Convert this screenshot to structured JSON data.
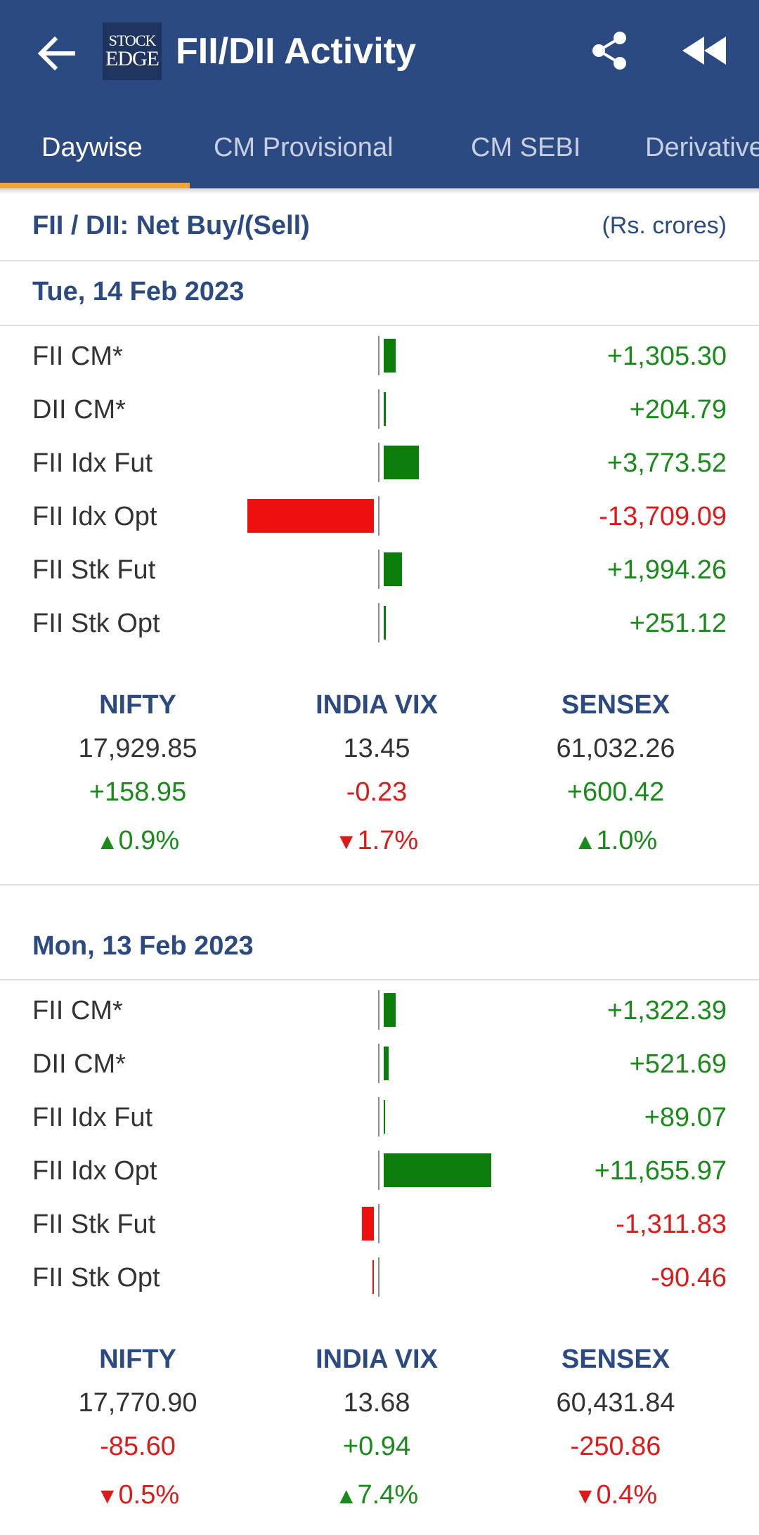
{
  "app": {
    "title": "FII/DII Activity",
    "logo_line1": "STOCK",
    "logo_line2": "EDGE"
  },
  "tabs": [
    {
      "label": "Daywise",
      "active": true
    },
    {
      "label": "CM Provisional",
      "active": false
    },
    {
      "label": "CM SEBI",
      "active": false
    },
    {
      "label": "Derivatives",
      "active": false
    }
  ],
  "header": {
    "title": "FII / DII: Net Buy/(Sell)",
    "unit": "(Rs. crores)"
  },
  "colors": {
    "appbar": "#2c4a82",
    "tab_indicator": "#f2a530",
    "positive": "#0b7d0b",
    "negative": "#ee0f0f"
  },
  "days": [
    {
      "date": "Tue, 14 Feb 2023",
      "flows": [
        {
          "label": "FII CM*",
          "value": 1305.3,
          "display": "+1,305.30"
        },
        {
          "label": "DII CM*",
          "value": 204.79,
          "display": "+204.79"
        },
        {
          "label": "FII Idx Fut",
          "value": 3773.52,
          "display": "+3,773.52"
        },
        {
          "label": "FII Idx Opt",
          "value": -13709.09,
          "display": "-13,709.09"
        },
        {
          "label": "FII Stk Fut",
          "value": 1994.26,
          "display": "+1,994.26"
        },
        {
          "label": "FII Stk Opt",
          "value": 251.12,
          "display": "+251.12"
        }
      ],
      "indices": [
        {
          "name": "NIFTY",
          "value": "17,929.85",
          "change": "+158.95",
          "direction": "up",
          "arrow": "▲",
          "pct": "0.9%"
        },
        {
          "name": "INDIA VIX",
          "value": "13.45",
          "change": "-0.23",
          "direction": "down",
          "arrow": "▼",
          "pct": "1.7%"
        },
        {
          "name": "SENSEX",
          "value": "61,032.26",
          "change": "+600.42",
          "direction": "up",
          "arrow": "▲",
          "pct": "1.0%"
        }
      ]
    },
    {
      "date": "Mon, 13 Feb 2023",
      "flows": [
        {
          "label": "FII CM*",
          "value": 1322.39,
          "display": "+1,322.39"
        },
        {
          "label": "DII CM*",
          "value": 521.69,
          "display": "+521.69"
        },
        {
          "label": "FII Idx Fut",
          "value": 89.07,
          "display": "+89.07"
        },
        {
          "label": "FII Idx Opt",
          "value": 11655.97,
          "display": "+11,655.97"
        },
        {
          "label": "FII Stk Fut",
          "value": -1311.83,
          "display": "-1,311.83"
        },
        {
          "label": "FII Stk Opt",
          "value": -90.46,
          "display": "-90.46"
        }
      ],
      "indices": [
        {
          "name": "NIFTY",
          "value": "17,770.90",
          "change": "-85.60",
          "direction": "down",
          "arrow": "▼",
          "pct": "0.5%"
        },
        {
          "name": "INDIA VIX",
          "value": "13.68",
          "change": "+0.94",
          "direction": "up",
          "arrow": "▲",
          "pct": "7.4%"
        },
        {
          "name": "SENSEX",
          "value": "60,431.84",
          "change": "-250.86",
          "direction": "down",
          "arrow": "▼",
          "pct": "0.4%"
        }
      ]
    }
  ]
}
